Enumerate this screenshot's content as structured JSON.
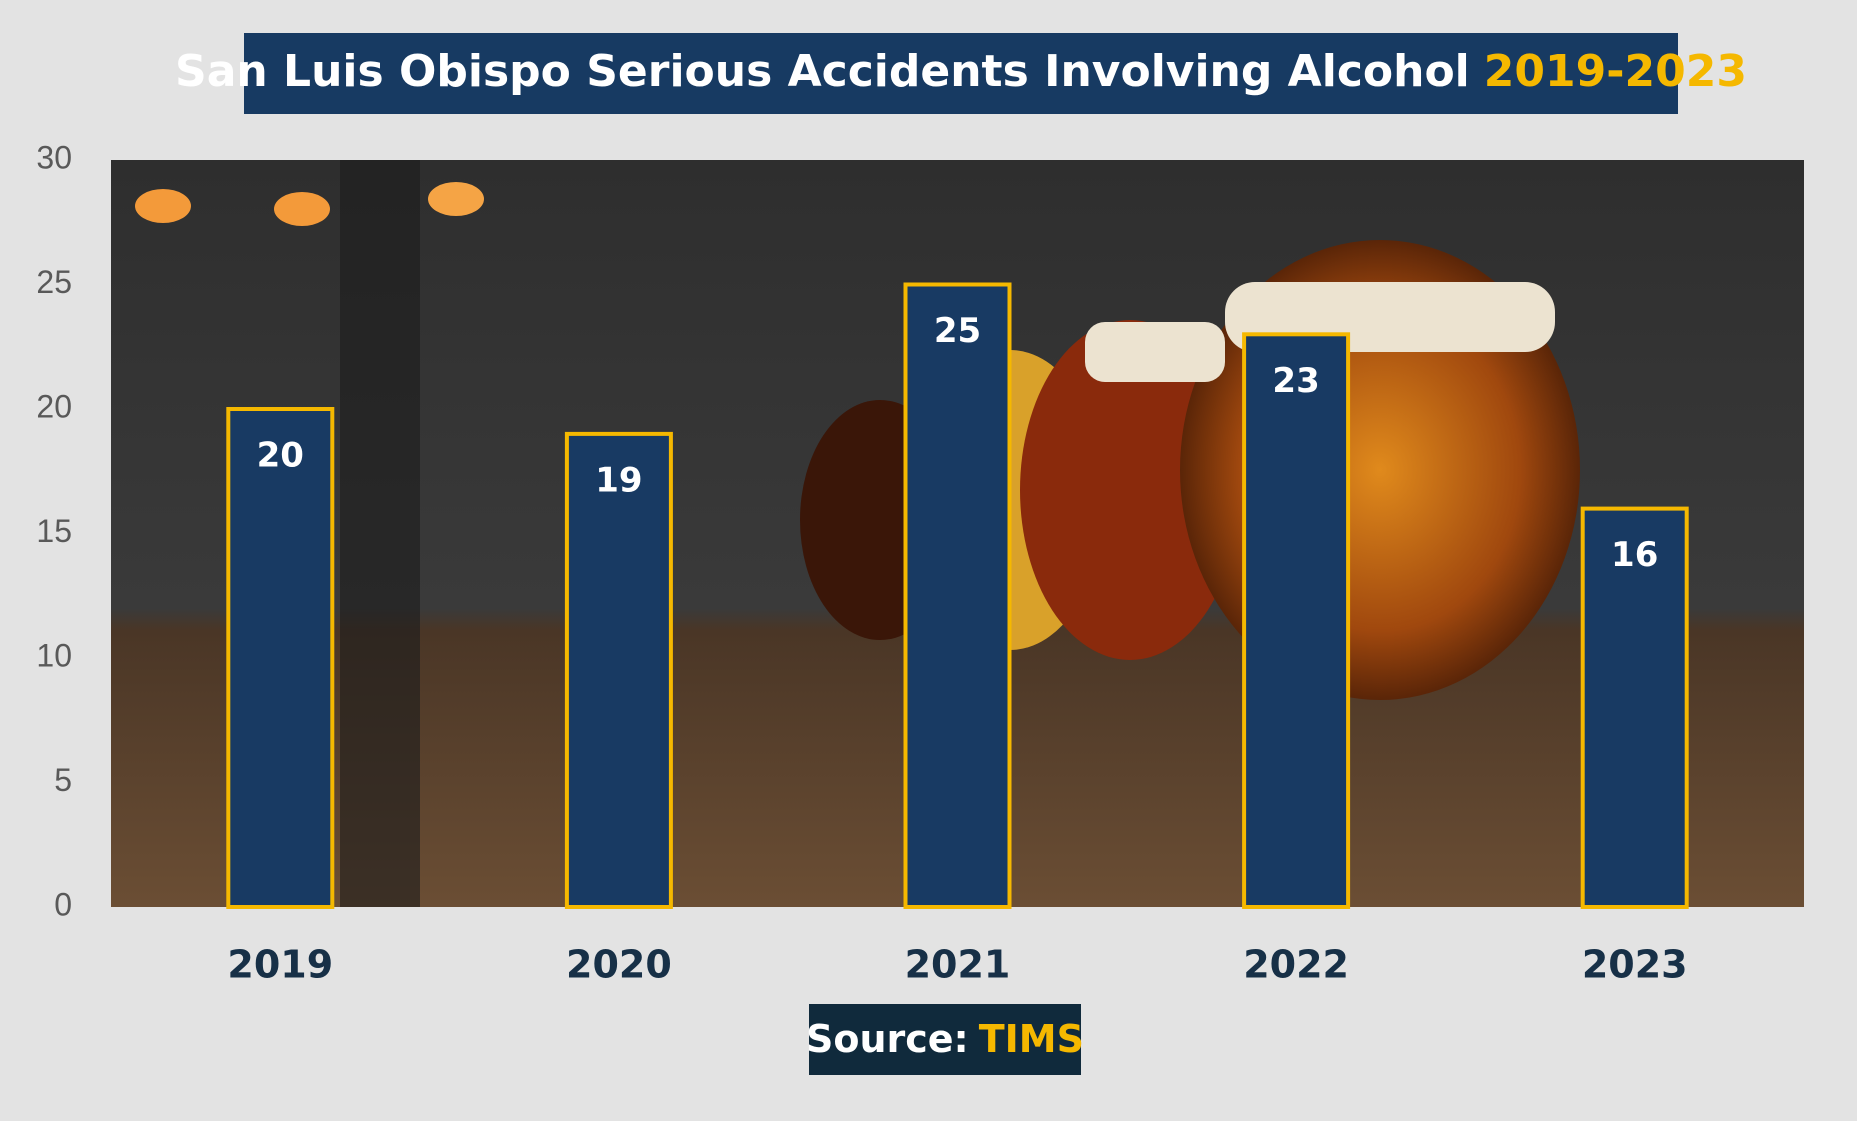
{
  "chart_data": {
    "type": "bar",
    "title": "San Luis Obispo Serious Accidents Involving Alcohol",
    "title_years": "2019-2023",
    "source_label": "Source:",
    "source": "TIMS",
    "categories": [
      "2019",
      "2020",
      "2021",
      "2022",
      "2023"
    ],
    "values": [
      20,
      19,
      25,
      23,
      16
    ],
    "color": "#183a63",
    "edge_color": "#f5b800",
    "ylim": [
      0,
      30
    ],
    "yticks": [
      0,
      5,
      10,
      15,
      20,
      25,
      30
    ],
    "grid": false
  }
}
